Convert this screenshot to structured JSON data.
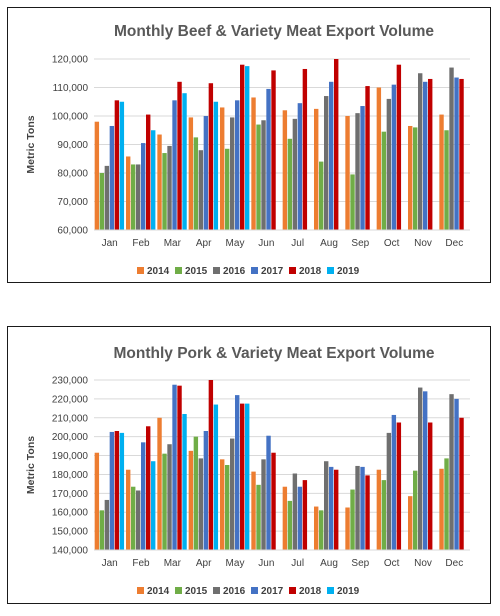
{
  "colors": {
    "2014": "#ed7d31",
    "2015": "#70ad47",
    "2016": "#6f6f6f",
    "2017": "#4472c4",
    "2018": "#c00000",
    "2019": "#00b0f0",
    "grid": "#d9d9d9"
  },
  "chart_data": [
    {
      "type": "bar",
      "title": "Monthly Beef & Variety Meat Export Volume",
      "ylabel": "Metric Tons",
      "xlabel": "",
      "ylim": [
        60000,
        120000
      ],
      "yticks": [
        60000,
        70000,
        80000,
        90000,
        100000,
        110000,
        120000
      ],
      "ytick_labels": [
        "60,000",
        "70,000",
        "80,000",
        "90,000",
        "100,000",
        "110,000",
        "120,000"
      ],
      "grid": true,
      "legend": "bottom",
      "categories": [
        "Jan",
        "Feb",
        "Mar",
        "Apr",
        "May",
        "Jun",
        "Jul",
        "Aug",
        "Sep",
        "Oct",
        "Nov",
        "Dec"
      ],
      "series": [
        {
          "name": "2014",
          "values": [
            98000,
            85800,
            93500,
            99500,
            103000,
            106500,
            102000,
            102500,
            100000,
            110000,
            96500,
            100500
          ]
        },
        {
          "name": "2015",
          "values": [
            80000,
            83000,
            87000,
            92500,
            88500,
            97000,
            92000,
            84000,
            79500,
            94500,
            96000,
            95000
          ]
        },
        {
          "name": "2016",
          "values": [
            82500,
            83000,
            89500,
            88000,
            99500,
            98500,
            99000,
            107000,
            101000,
            106000,
            115000,
            117000
          ]
        },
        {
          "name": "2017",
          "values": [
            96500,
            90500,
            105500,
            100000,
            105500,
            109500,
            104500,
            112000,
            103500,
            111000,
            112000,
            113500
          ]
        },
        {
          "name": "2018",
          "values": [
            105500,
            100500,
            112000,
            111500,
            118000,
            116000,
            116500,
            120000,
            110500,
            118000,
            113000,
            113000
          ]
        },
        {
          "name": "2019",
          "values": [
            105000,
            95000,
            108000,
            105000,
            117500,
            null,
            null,
            null,
            null,
            null,
            null,
            null
          ]
        }
      ]
    },
    {
      "type": "bar",
      "title": "Monthly Pork & Variety Meat Export Volume",
      "ylabel": "Metric Tons",
      "xlabel": "",
      "ylim": [
        140000,
        230000
      ],
      "yticks": [
        140000,
        150000,
        160000,
        170000,
        180000,
        190000,
        200000,
        210000,
        220000,
        230000
      ],
      "ytick_labels": [
        "140,000",
        "150,000",
        "160,000",
        "170,000",
        "180,000",
        "190,000",
        "200,000",
        "210,000",
        "220,000",
        "230,000"
      ],
      "grid": true,
      "legend": "bottom",
      "categories": [
        "Jan",
        "Feb",
        "Mar",
        "Apr",
        "May",
        "Jun",
        "Jul",
        "Aug",
        "Sep",
        "Oct",
        "Nov",
        "Dec"
      ],
      "series": [
        {
          "name": "2014",
          "values": [
            191500,
            182500,
            210000,
            192500,
            188000,
            181500,
            173500,
            163000,
            162500,
            182500,
            168500,
            183000
          ]
        },
        {
          "name": "2015",
          "values": [
            161000,
            173500,
            191000,
            200000,
            185000,
            174500,
            166000,
            161000,
            172000,
            177000,
            182000,
            188500
          ]
        },
        {
          "name": "2016",
          "values": [
            166500,
            171500,
            196000,
            188500,
            199000,
            188000,
            180500,
            187000,
            184500,
            202000,
            226000,
            222500
          ]
        },
        {
          "name": "2017",
          "values": [
            202500,
            197000,
            227500,
            203000,
            222000,
            200500,
            173500,
            184000,
            184000,
            211500,
            224000,
            220000
          ]
        },
        {
          "name": "2018",
          "values": [
            203000,
            205500,
            227000,
            230000,
            217500,
            191500,
            177000,
            182500,
            179500,
            207500,
            207500,
            210000
          ]
        },
        {
          "name": "2019",
          "values": [
            202000,
            187000,
            212000,
            217000,
            217500,
            null,
            null,
            null,
            null,
            null,
            null,
            null
          ]
        }
      ]
    }
  ]
}
